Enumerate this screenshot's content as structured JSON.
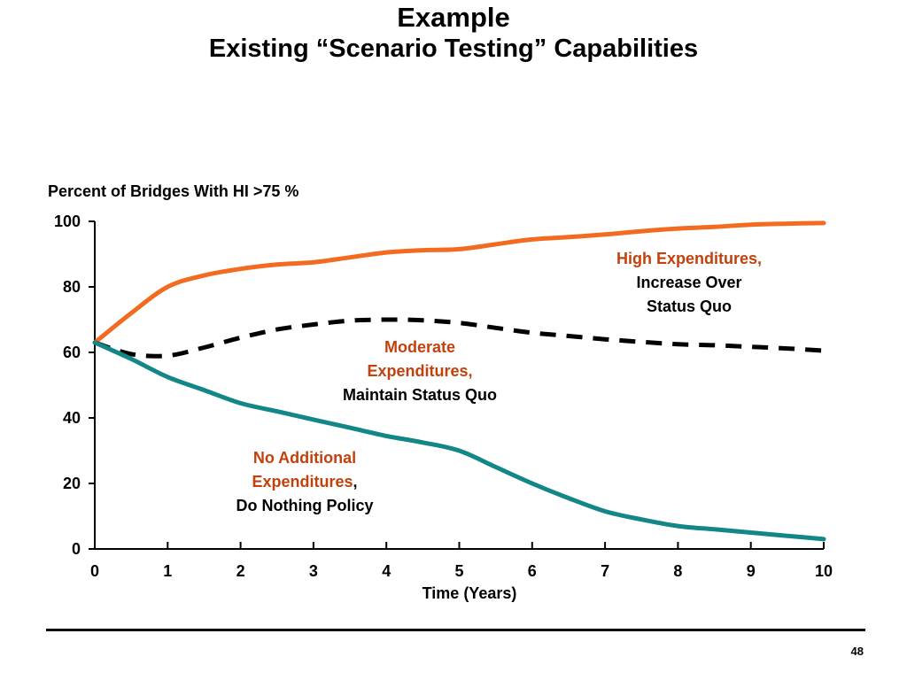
{
  "title": "Example",
  "subtitle": "Existing “Scenario Testing” Capabilities",
  "page_number": "48",
  "colors": {
    "high": "#f26b21",
    "moderate": "#000000",
    "none": "#138687",
    "annotation_red": "#c2410c"
  },
  "annotations": {
    "high": {
      "line1": "High Expenditures,",
      "line2": "Increase Over",
      "line3": "Status Quo"
    },
    "moderate": {
      "line1": "Moderate",
      "line2": "Expenditures,",
      "line3": "Maintain Status Quo"
    },
    "none": {
      "line1": "No Additional",
      "line2_red": "Expenditures",
      "line2_black": ",",
      "line3": "Do Nothing Policy"
    }
  },
  "chart_data": {
    "type": "line",
    "title": "",
    "ylabel": "Percent of Bridges With HI >75 %",
    "xlabel": "Time (Years)",
    "xlim": [
      0,
      10
    ],
    "ylim": [
      0,
      100
    ],
    "xticks": [
      "0",
      "1",
      "2",
      "3",
      "4",
      "5",
      "6",
      "7",
      "8",
      "9",
      "10"
    ],
    "yticks": [
      "0",
      "20",
      "40",
      "60",
      "80",
      "100"
    ],
    "grid": false,
    "series": [
      {
        "key": "high",
        "style": "solid",
        "x": [
          0,
          0.5,
          1,
          1.5,
          2,
          2.5,
          3,
          3.5,
          4,
          4.5,
          5,
          5.5,
          6,
          6.5,
          7,
          7.5,
          8,
          8.5,
          9,
          9.5,
          10
        ],
        "y": [
          63,
          72,
          80,
          83.5,
          85.5,
          86.8,
          87.5,
          89,
          90.5,
          91.2,
          91.5,
          93,
          94.5,
          95.2,
          96,
          97,
          97.8,
          98.3,
          99,
          99.3,
          99.5
        ]
      },
      {
        "key": "moderate",
        "style": "dashed",
        "x": [
          0,
          0.5,
          1,
          1.5,
          2,
          2.5,
          3,
          3.5,
          4,
          4.5,
          5,
          5.5,
          6,
          6.5,
          7,
          7.5,
          8,
          8.5,
          9,
          9.5,
          10
        ],
        "y": [
          63,
          59.5,
          59,
          61.5,
          64.5,
          67,
          68.5,
          69.7,
          70,
          69.8,
          69,
          67.5,
          66,
          65,
          64,
          63.2,
          62.5,
          62.2,
          61.7,
          61.2,
          60.5
        ]
      },
      {
        "key": "none",
        "style": "solid",
        "x": [
          0,
          0.5,
          1,
          1.5,
          2,
          2.5,
          3,
          3.5,
          4,
          4.5,
          5,
          5.5,
          6,
          6.5,
          7,
          7.5,
          8,
          8.5,
          9,
          9.5,
          10
        ],
        "y": [
          63,
          58,
          52.5,
          48.5,
          44.5,
          42,
          39.5,
          37,
          34.5,
          32.5,
          30,
          25,
          20,
          15.5,
          11.5,
          9,
          7,
          6,
          5,
          4,
          3
        ]
      }
    ]
  }
}
